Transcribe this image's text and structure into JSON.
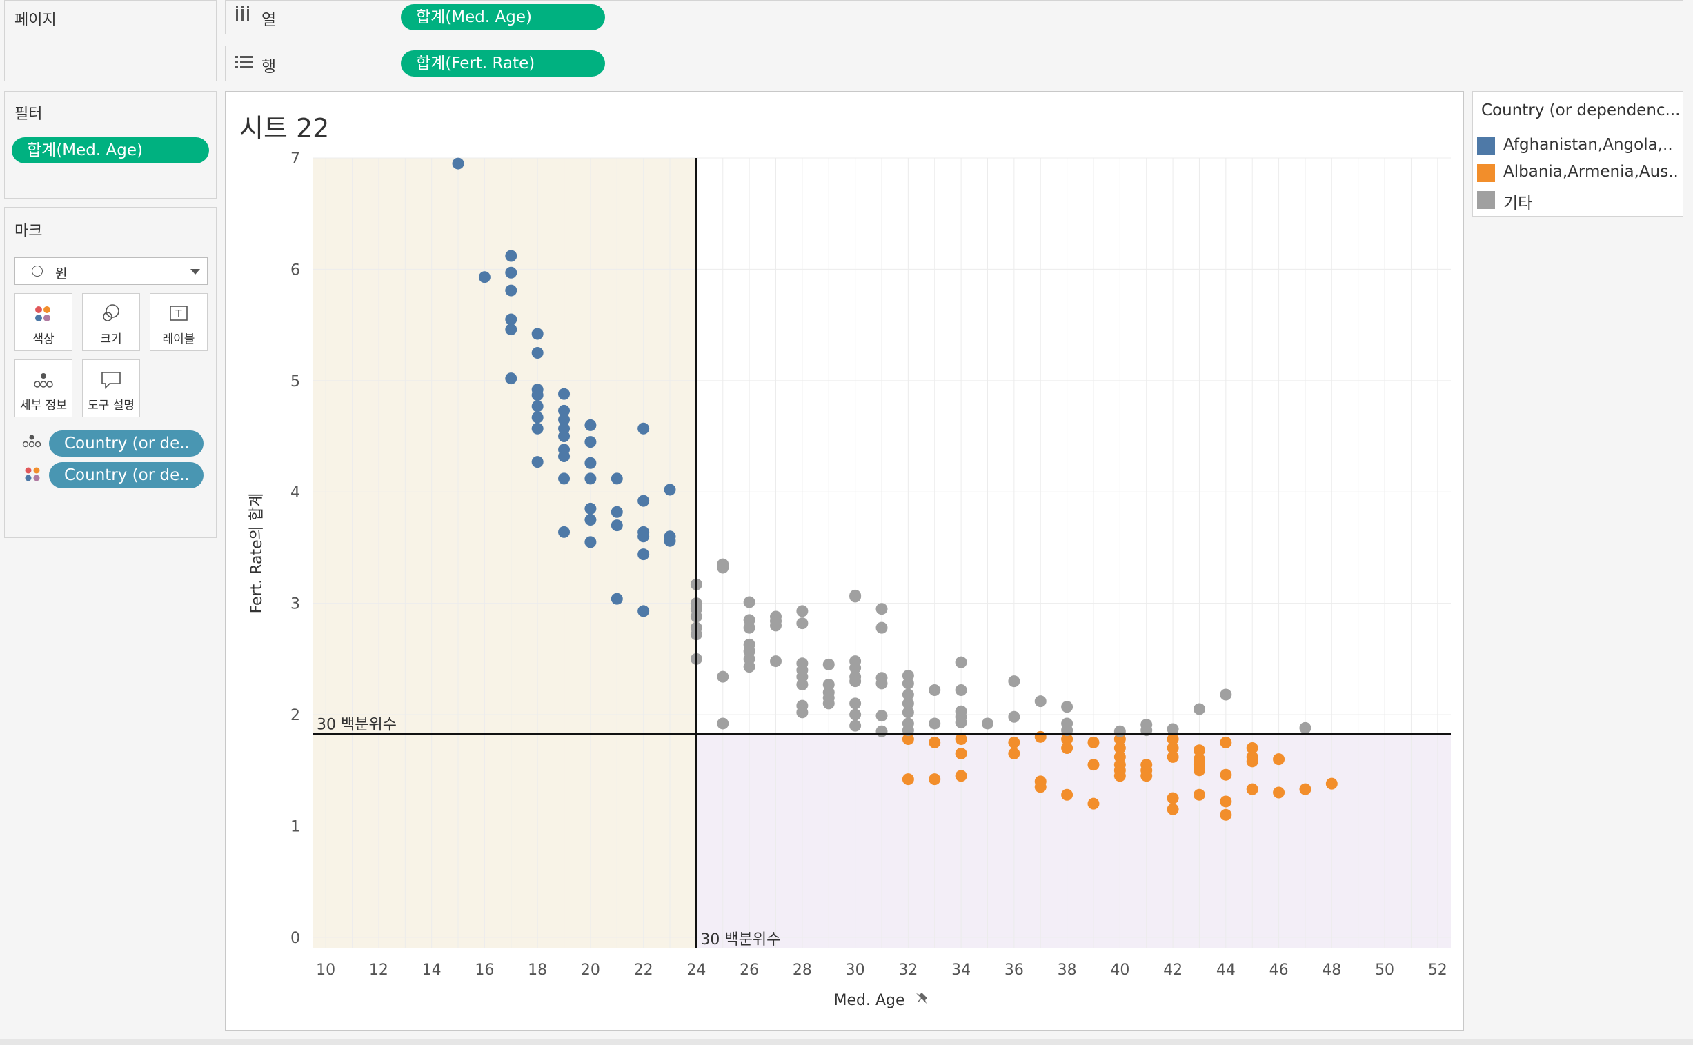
{
  "pages": {
    "title": "페이지"
  },
  "shelves": {
    "columns": {
      "label": "열",
      "pill": "합계(Med. Age)"
    },
    "rows": {
      "label": "행",
      "pill": "합계(Fert. Rate)"
    }
  },
  "filters": {
    "title": "필터",
    "pill": "합계(Med. Age)"
  },
  "marks": {
    "title": "마크",
    "type_value": "원",
    "cards": [
      {
        "label": "색상",
        "icon": "color-icon"
      },
      {
        "label": "크기",
        "icon": "size-icon"
      },
      {
        "label": "레이블",
        "icon": "label-icon"
      },
      {
        "label": "세부 정보",
        "icon": "detail-icon"
      },
      {
        "label": "도구 설명",
        "icon": "tooltip-icon"
      }
    ],
    "pills": [
      {
        "label": "Country (or de..",
        "icon": "detail-icon"
      },
      {
        "label": "Country (or de..",
        "icon": "color-icon"
      }
    ]
  },
  "legend": {
    "title": "Country (or dependenc...",
    "items": [
      {
        "label": "Afghanistan,Angola,..",
        "color": "#4e79a7"
      },
      {
        "label": "Albania,Armenia,Aus..",
        "color": "#f28e2b"
      },
      {
        "label": "기타",
        "color": "#a0a0a0"
      }
    ]
  },
  "sheet": {
    "title": "시트 22"
  },
  "chart_data": {
    "type": "scatter",
    "xlabel": "Med. Age",
    "ylabel": "Fert. Rate의 합계",
    "xlim": [
      9.5,
      52.5
    ],
    "ylim": [
      -0.1,
      7.0
    ],
    "xticks": [
      10,
      12,
      14,
      16,
      18,
      20,
      22,
      24,
      26,
      28,
      30,
      32,
      34,
      36,
      38,
      40,
      42,
      44,
      46,
      48,
      50,
      52
    ],
    "yticks": [
      0,
      1,
      2,
      3,
      4,
      5,
      6,
      7
    ],
    "reference_lines": {
      "x": {
        "value": 24,
        "label": "30 백분위수"
      },
      "y": {
        "value": 1.83,
        "label": "30 백분위수"
      }
    },
    "colors": {
      "blue": "#4e79a7",
      "orange": "#f28e2b",
      "gray": "#a0a0a0",
      "shade_left": "#f8f3e7",
      "shade_bottom": "#f3eef7"
    },
    "series": [
      {
        "color": "blue",
        "points": [
          [
            15,
            6.95
          ],
          [
            16,
            5.93
          ],
          [
            17,
            6.12
          ],
          [
            17,
            5.97
          ],
          [
            17,
            5.81
          ],
          [
            17,
            5.55
          ],
          [
            17,
            5.46
          ],
          [
            17,
            5.02
          ],
          [
            18,
            5.42
          ],
          [
            18,
            5.25
          ],
          [
            18,
            4.92
          ],
          [
            18,
            4.87
          ],
          [
            18,
            4.77
          ],
          [
            18,
            4.67
          ],
          [
            18,
            4.57
          ],
          [
            18,
            4.27
          ],
          [
            19,
            4.88
          ],
          [
            19,
            4.73
          ],
          [
            19,
            4.65
          ],
          [
            19,
            4.57
          ],
          [
            19,
            4.5
          ],
          [
            19,
            4.38
          ],
          [
            19,
            4.32
          ],
          [
            19,
            4.12
          ],
          [
            19,
            3.64
          ],
          [
            20,
            4.6
          ],
          [
            20,
            4.45
          ],
          [
            20,
            4.26
          ],
          [
            20,
            4.12
          ],
          [
            20,
            3.85
          ],
          [
            20,
            3.75
          ],
          [
            20,
            3.55
          ],
          [
            21,
            4.12
          ],
          [
            21,
            3.82
          ],
          [
            21,
            3.7
          ],
          [
            21,
            3.04
          ],
          [
            22,
            4.57
          ],
          [
            22,
            3.92
          ],
          [
            22,
            3.64
          ],
          [
            22,
            3.6
          ],
          [
            22,
            3.44
          ],
          [
            22,
            2.93
          ],
          [
            23,
            4.02
          ],
          [
            23,
            3.6
          ],
          [
            23,
            3.56
          ]
        ]
      },
      {
        "color": "orange",
        "points": [
          [
            32,
            1.78
          ],
          [
            32,
            1.42
          ],
          [
            33,
            1.75
          ],
          [
            33,
            1.42
          ],
          [
            34,
            1.78
          ],
          [
            34,
            1.65
          ],
          [
            34,
            1.45
          ],
          [
            36,
            1.75
          ],
          [
            36,
            1.65
          ],
          [
            37,
            1.8
          ],
          [
            37,
            1.4
          ],
          [
            37,
            1.35
          ],
          [
            38,
            1.78
          ],
          [
            38,
            1.7
          ],
          [
            38,
            1.28
          ],
          [
            39,
            1.75
          ],
          [
            39,
            1.55
          ],
          [
            39,
            1.2
          ],
          [
            40,
            1.78
          ],
          [
            40,
            1.7
          ],
          [
            40,
            1.62
          ],
          [
            40,
            1.55
          ],
          [
            40,
            1.5
          ],
          [
            40,
            1.45
          ],
          [
            41,
            1.55
          ],
          [
            41,
            1.5
          ],
          [
            41,
            1.45
          ],
          [
            42,
            1.78
          ],
          [
            42,
            1.7
          ],
          [
            42,
            1.62
          ],
          [
            42,
            1.25
          ],
          [
            42,
            1.15
          ],
          [
            43,
            1.68
          ],
          [
            43,
            1.6
          ],
          [
            43,
            1.55
          ],
          [
            43,
            1.5
          ],
          [
            43,
            1.28
          ],
          [
            44,
            1.75
          ],
          [
            44,
            1.46
          ],
          [
            44,
            1.22
          ],
          [
            44,
            1.1
          ],
          [
            45,
            1.7
          ],
          [
            45,
            1.62
          ],
          [
            45,
            1.58
          ],
          [
            45,
            1.33
          ],
          [
            46,
            1.6
          ],
          [
            46,
            1.3
          ],
          [
            47,
            1.33
          ],
          [
            48,
            1.38
          ]
        ]
      },
      {
        "color": "gray",
        "points": [
          [
            24,
            3.17
          ],
          [
            24,
            3.0
          ],
          [
            24,
            2.95
          ],
          [
            24,
            2.88
          ],
          [
            24,
            2.78
          ],
          [
            24,
            2.72
          ],
          [
            24,
            2.5
          ],
          [
            25,
            3.35
          ],
          [
            25,
            3.32
          ],
          [
            25,
            2.34
          ],
          [
            25,
            1.92
          ],
          [
            26,
            3.01
          ],
          [
            26,
            2.85
          ],
          [
            26,
            2.78
          ],
          [
            26,
            2.63
          ],
          [
            26,
            2.57
          ],
          [
            26,
            2.5
          ],
          [
            26,
            2.43
          ],
          [
            27,
            2.88
          ],
          [
            27,
            2.84
          ],
          [
            27,
            2.8
          ],
          [
            27,
            2.48
          ],
          [
            28,
            2.93
          ],
          [
            28,
            2.82
          ],
          [
            28,
            2.46
          ],
          [
            28,
            2.4
          ],
          [
            28,
            2.34
          ],
          [
            28,
            2.27
          ],
          [
            28,
            2.08
          ],
          [
            28,
            2.02
          ],
          [
            29,
            2.45
          ],
          [
            29,
            2.27
          ],
          [
            29,
            2.2
          ],
          [
            29,
            2.15
          ],
          [
            29,
            2.1
          ],
          [
            30,
            3.07
          ],
          [
            30,
            3.06
          ],
          [
            30,
            2.48
          ],
          [
            30,
            2.42
          ],
          [
            30,
            2.34
          ],
          [
            30,
            2.3
          ],
          [
            30,
            2.1
          ],
          [
            30,
            2.0
          ],
          [
            30,
            1.9
          ],
          [
            31,
            2.95
          ],
          [
            31,
            2.78
          ],
          [
            31,
            2.33
          ],
          [
            31,
            2.28
          ],
          [
            31,
            1.99
          ],
          [
            31,
            1.85
          ],
          [
            32,
            2.35
          ],
          [
            32,
            2.28
          ],
          [
            32,
            2.18
          ],
          [
            32,
            2.1
          ],
          [
            32,
            2.02
          ],
          [
            32,
            1.92
          ],
          [
            32,
            1.86
          ],
          [
            33,
            2.22
          ],
          [
            33,
            1.92
          ],
          [
            34,
            2.47
          ],
          [
            34,
            2.22
          ],
          [
            34,
            2.03
          ],
          [
            34,
            1.98
          ],
          [
            34,
            1.93
          ],
          [
            35,
            1.92
          ],
          [
            36,
            2.3
          ],
          [
            36,
            1.98
          ],
          [
            37,
            2.12
          ],
          [
            38,
            2.07
          ],
          [
            38,
            1.92
          ],
          [
            38,
            1.86
          ],
          [
            40,
            1.85
          ],
          [
            41,
            1.91
          ],
          [
            41,
            1.86
          ],
          [
            42,
            1.87
          ],
          [
            43,
            2.05
          ],
          [
            44,
            2.18
          ],
          [
            47,
            1.88
          ]
        ]
      }
    ]
  }
}
